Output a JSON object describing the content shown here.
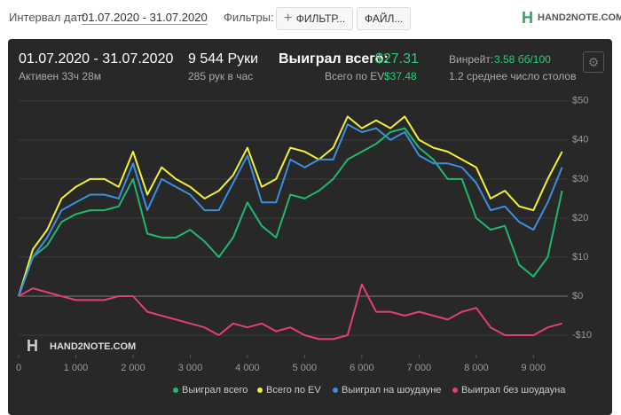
{
  "header": {
    "date_label": "Интервал дат:",
    "date_value": "01.07.2020 - 31.07.2020",
    "filters_label": "Фильтры:",
    "filter_button": "ФИЛЬТР...",
    "file_button": "ФАЙЛ...",
    "logo": "HAND2NOTE.COM"
  },
  "stats": {
    "period": "01.07.2020 - 31.07.2020",
    "active": "Активен 33ч 28м",
    "hands": "9 544 Руки",
    "hands_per_hour": "285 рук в час",
    "won_label": "Выиграл всего:",
    "won_value": "$27.31",
    "ev_label": "Всего по EV:",
    "ev_value": "$37.48",
    "winrate_label": "Винрейт:",
    "winrate_value": "3.58 бб/100",
    "tables": "1.2 среднее число столов"
  },
  "chart_data": {
    "type": "line",
    "watermark": "HAND2NOTE.COM",
    "x": [
      0,
      250,
      500,
      750,
      1000,
      1250,
      1500,
      1750,
      2000,
      2250,
      2500,
      2750,
      3000,
      3250,
      3500,
      3750,
      4000,
      4250,
      4500,
      4750,
      5000,
      5250,
      5500,
      5750,
      6000,
      6250,
      6500,
      6750,
      7000,
      7250,
      7500,
      7750,
      8000,
      8250,
      8500,
      8750,
      9000,
      9250,
      9500
    ],
    "series": [
      {
        "name": "Выиграл всего",
        "color": "#1fb870",
        "values": [
          0,
          10,
          13,
          19,
          21,
          22,
          22,
          23,
          30,
          16,
          15,
          15,
          17,
          14,
          10,
          15,
          24,
          18,
          15,
          26,
          25,
          27,
          30,
          35,
          37,
          39,
          42,
          43,
          38,
          35,
          30,
          30,
          20,
          17,
          18,
          8,
          5,
          10,
          27
        ]
      },
      {
        "name": "Всего по EV",
        "color": "#f0f03a",
        "values": [
          0,
          12,
          17,
          25,
          28,
          30,
          30,
          28,
          37,
          26,
          33,
          30,
          28,
          25,
          27,
          31,
          38,
          28,
          30,
          38,
          37,
          35,
          38,
          46,
          43,
          45,
          43,
          46,
          40,
          38,
          37,
          35,
          33,
          25,
          27,
          23,
          22,
          30,
          37
        ]
      },
      {
        "name": "Выиграл на шоудауне",
        "color": "#3a8fdf",
        "values": [
          0,
          10,
          15,
          22,
          24,
          26,
          26,
          25,
          34,
          22,
          30,
          28,
          26,
          22,
          22,
          29,
          36,
          24,
          24,
          35,
          33,
          35,
          35,
          44,
          42,
          43,
          40,
          42,
          36,
          34,
          34,
          33,
          29,
          22,
          23,
          19,
          17,
          24,
          33
        ]
      },
      {
        "name": "Выиграл без шоудауна",
        "color": "#e0407a",
        "values": [
          0,
          2,
          1,
          0,
          -1,
          -1,
          -1,
          0,
          0,
          -4,
          -5,
          -6,
          -7,
          -8,
          -10,
          -7,
          -8,
          -7,
          -9,
          -8,
          -10,
          -11,
          -11,
          -10,
          3,
          -4,
          -4,
          -5,
          -4,
          -5,
          -6,
          -4,
          -3,
          -8,
          -10,
          -10,
          -10,
          -8,
          -7
        ]
      }
    ],
    "xlim": [
      0,
      9600
    ],
    "ylim": [
      -15,
      52
    ],
    "xticks": [
      0,
      {
        "value": 1000,
        "label": "1 000"
      },
      {
        "value": 2000,
        "label": "2 000"
      },
      {
        "value": 3000,
        "label": "3 000"
      },
      {
        "value": 4000,
        "label": "4 000"
      },
      {
        "value": 5000,
        "label": "5 000"
      },
      {
        "value": 6000,
        "label": "6 000"
      },
      {
        "value": 7000,
        "label": "7 000"
      },
      {
        "value": 8000,
        "label": "8 000"
      },
      {
        "value": 9000,
        "label": "9 000"
      }
    ],
    "yticks": [
      {
        "value": -10,
        "label": "-$10"
      },
      {
        "value": 0,
        "label": "$0"
      },
      {
        "value": 10,
        "label": "$10"
      },
      {
        "value": 20,
        "label": "$20"
      },
      {
        "value": 30,
        "label": "$30"
      },
      {
        "value": 40,
        "label": "$40"
      },
      {
        "value": 50,
        "label": "$50"
      }
    ],
    "grid": true
  }
}
